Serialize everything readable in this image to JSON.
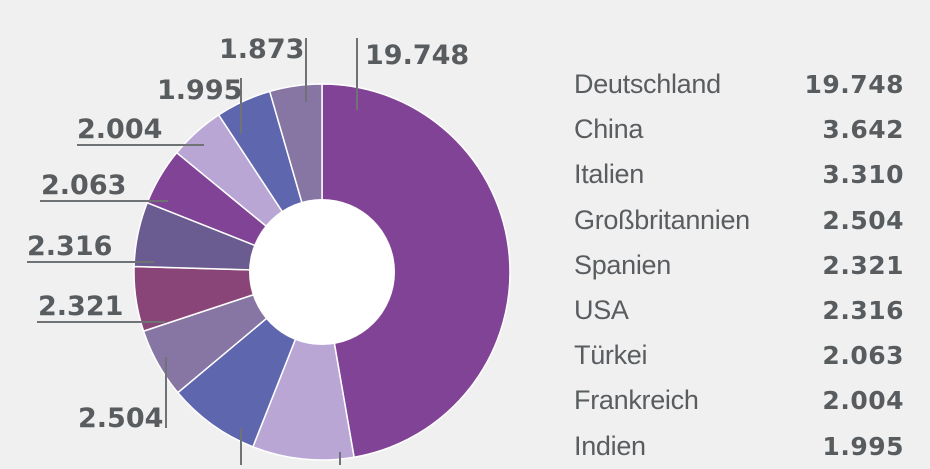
{
  "chart_data": {
    "type": "pie",
    "variant": "donut",
    "title": "",
    "categories": [
      "Deutschland",
      "China",
      "Italien",
      "Großbritannien",
      "Spanien",
      "USA",
      "Türkei",
      "Frankreich",
      "Indien",
      ""
    ],
    "values": [
      19748,
      3642,
      3310,
      2504,
      2321,
      2316,
      2063,
      2004,
      1995,
      1873
    ],
    "value_labels": [
      "19.748",
      "3.642",
      "3.310",
      "2.504",
      "2.321",
      "2.316",
      "2.063",
      "2.004",
      "1.995",
      "1.873"
    ],
    "colors": [
      "#814396",
      "#b9a6d4",
      "#5e66ae",
      "#8775a3",
      "#8a4578",
      "#6a5b91",
      "#814396",
      "#b9a6d4",
      "#5e66ae",
      "#8775a3"
    ],
    "legend_position": "right",
    "grid": false
  },
  "legend": {
    "rows": [
      {
        "name": "Deutschland",
        "value": "19.748"
      },
      {
        "name": "China",
        "value": "3.642"
      },
      {
        "name": "Italien",
        "value": "3.310"
      },
      {
        "name": "Großbritannien",
        "value": "2.504"
      },
      {
        "name": "Spanien",
        "value": "2.321"
      },
      {
        "name": "USA",
        "value": "2.316"
      },
      {
        "name": "Türkei",
        "value": "2.063"
      },
      {
        "name": "Frankreich",
        "value": "2.004"
      },
      {
        "name": "Indien",
        "value": "1.995"
      }
    ]
  },
  "labels": {
    "l0": "19.748",
    "l3": "2.504",
    "l4": "2.321",
    "l5": "2.316",
    "l6": "2.063",
    "l7": "2.004",
    "l8": "1.995",
    "l9": "1.873"
  },
  "background": "#f0f0f0",
  "text_color": "#585c5f"
}
